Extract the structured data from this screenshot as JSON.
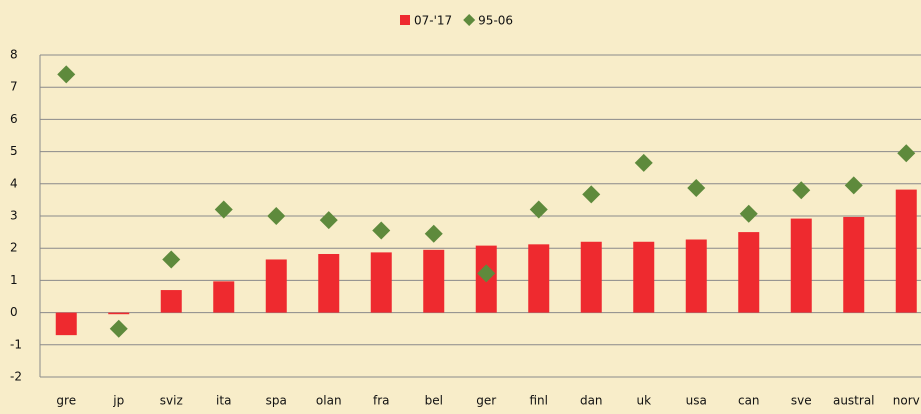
{
  "chart_data": {
    "type": "bar",
    "categories": [
      "gre",
      "jp",
      "sviz",
      "ita",
      "spa",
      "olan",
      "fra",
      "bel",
      "ger",
      "finl",
      "dan",
      "uk",
      "usa",
      "can",
      "sve",
      "austral",
      "norv"
    ],
    "series": [
      {
        "name": "07-'17",
        "type": "bar",
        "color": "#ee2a2f",
        "values": [
          -0.7,
          -0.05,
          0.7,
          0.97,
          1.65,
          1.82,
          1.87,
          1.95,
          2.08,
          2.12,
          2.2,
          2.2,
          2.27,
          2.5,
          2.92,
          2.97,
          3.82
        ]
      },
      {
        "name": "95-06",
        "type": "scatter",
        "color": "#5e8a3c",
        "values": [
          7.4,
          -0.5,
          1.65,
          3.2,
          3.0,
          2.87,
          2.55,
          2.45,
          1.22,
          3.2,
          3.67,
          4.65,
          3.87,
          3.07,
          3.8,
          3.95,
          4.95
        ]
      }
    ],
    "ylim": [
      -2,
      8
    ],
    "yticks": [
      -2,
      -1,
      0,
      1,
      2,
      3,
      4,
      5,
      6,
      7,
      8
    ],
    "grid": true,
    "legend": "top"
  }
}
